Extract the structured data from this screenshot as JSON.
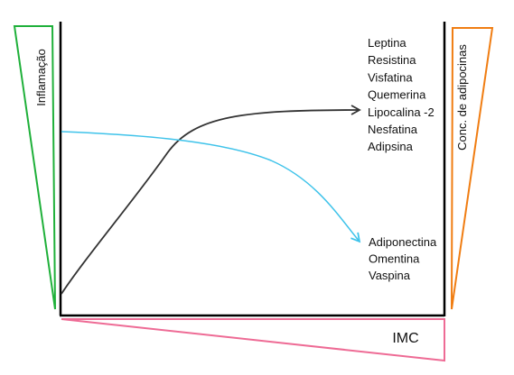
{
  "labels": {
    "left_axis": "Inflamação",
    "right_axis": "Conc. de adipocinas",
    "x_axis": "IMC"
  },
  "groups": {
    "increasing": {
      "items": [
        "Leptina",
        "Resistina",
        "Visfatina",
        "Quemerina",
        "Lipocalina -2",
        "Nesfatina",
        "Adipsina"
      ]
    },
    "decreasing": {
      "items": [
        "Adiponectina",
        "Omentina",
        "Vaspina"
      ]
    }
  },
  "colors": {
    "left_wedge": "#1fb03a",
    "right_wedge": "#f07d12",
    "bottom_wedge": "#ee6b95",
    "increasing_curve": "#333333",
    "decreasing_curve": "#3fc3ea",
    "axes": "#000000"
  }
}
